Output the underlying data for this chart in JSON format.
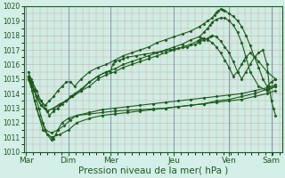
{
  "background_color": "#d4eee8",
  "plot_bg_color": "#cceee4",
  "grid_color": "#e8a0a0",
  "line_color": "#1a5c1a",
  "marker_color": "#1a5c1a",
  "xlabel": "Pression niveau de la mer( hPa )",
  "xlabel_fontsize": 7.5,
  "ylim": [
    1010,
    1020
  ],
  "yticks": [
    1010,
    1011,
    1012,
    1013,
    1014,
    1015,
    1016,
    1017,
    1018,
    1019,
    1020
  ],
  "days": [
    "Mar",
    "Dim",
    "Mer",
    "Jeu",
    "Ven",
    "Sam"
  ],
  "day_positions": [
    0.0,
    1.0,
    2.0,
    3.5,
    4.8,
    5.8
  ],
  "xlim": [
    -0.05,
    6.05
  ],
  "figsize": [
    3.2,
    2.0
  ],
  "dpi": 100,
  "lines": [
    {
      "x": [
        0.05,
        0.12,
        0.18,
        0.25,
        0.35,
        0.45,
        0.55,
        0.65,
        0.75,
        0.85,
        0.95,
        1.05,
        1.15,
        1.3,
        1.5,
        1.7,
        1.9,
        2.1,
        2.3,
        2.5,
        2.7,
        2.9,
        3.1,
        3.3,
        3.5,
        3.7,
        3.9,
        4.1,
        4.2,
        4.3,
        4.4,
        4.45,
        4.5,
        4.55,
        4.6,
        4.65,
        4.7,
        4.8,
        4.9,
        5.0,
        5.1,
        5.2,
        5.3,
        5.4,
        5.5,
        5.6,
        5.7,
        5.8,
        5.9
      ],
      "y": [
        1015.2,
        1014.8,
        1014.3,
        1013.8,
        1013.5,
        1013.2,
        1013.5,
        1013.8,
        1014.2,
        1014.5,
        1014.8,
        1014.8,
        1014.5,
        1015.0,
        1015.5,
        1015.8,
        1016.0,
        1016.3,
        1016.6,
        1016.8,
        1017.0,
        1017.2,
        1017.5,
        1017.7,
        1017.9,
        1018.1,
        1018.3,
        1018.6,
        1018.8,
        1019.0,
        1019.2,
        1019.4,
        1019.6,
        1019.7,
        1019.8,
        1019.75,
        1019.7,
        1019.5,
        1019.3,
        1019.0,
        1018.6,
        1018.0,
        1017.3,
        1016.5,
        1015.8,
        1015.0,
        1014.5,
        1014.8,
        1015.0
      ]
    },
    {
      "x": [
        0.05,
        0.15,
        0.25,
        0.35,
        0.5,
        0.65,
        0.8,
        0.95,
        1.1,
        1.3,
        1.5,
        1.7,
        1.9,
        2.1,
        2.3,
        2.5,
        2.7,
        2.9,
        3.1,
        3.3,
        3.5,
        3.7,
        3.9,
        4.1,
        4.2,
        4.3,
        4.35,
        4.4,
        4.5,
        4.6,
        4.7,
        4.8,
        4.9,
        5.0,
        5.1,
        5.2,
        5.3,
        5.5,
        5.7,
        5.9
      ],
      "y": [
        1015.0,
        1014.5,
        1013.8,
        1013.2,
        1012.8,
        1013.0,
        1013.2,
        1013.5,
        1013.8,
        1014.2,
        1014.8,
        1015.2,
        1015.5,
        1015.7,
        1016.0,
        1016.2,
        1016.4,
        1016.6,
        1016.8,
        1017.0,
        1017.2,
        1017.4,
        1017.7,
        1017.9,
        1018.2,
        1018.5,
        1018.7,
        1018.9,
        1019.1,
        1019.2,
        1019.2,
        1019.0,
        1018.7,
        1018.2,
        1017.5,
        1016.5,
        1015.5,
        1014.5,
        1014.2,
        1014.5
      ]
    },
    {
      "x": [
        0.05,
        0.15,
        0.25,
        0.4,
        0.6,
        0.8,
        1.0,
        1.2,
        1.5,
        1.8,
        2.1,
        2.4,
        2.7,
        3.0,
        3.3,
        3.6,
        3.9,
        4.2,
        4.5,
        4.8,
        5.1,
        5.4,
        5.7,
        5.9
      ],
      "y": [
        1015.0,
        1014.2,
        1013.0,
        1011.5,
        1011.0,
        1011.2,
        1011.5,
        1012.0,
        1012.3,
        1012.5,
        1012.6,
        1012.7,
        1012.8,
        1012.9,
        1013.0,
        1013.1,
        1013.2,
        1013.3,
        1013.4,
        1013.5,
        1013.6,
        1013.8,
        1014.0,
        1014.2
      ]
    },
    {
      "x": [
        0.05,
        0.12,
        0.2,
        0.3,
        0.45,
        0.6,
        0.75,
        0.9,
        1.05,
        1.2,
        1.5,
        1.8,
        2.1,
        2.4,
        2.7,
        3.0,
        3.3,
        3.6,
        3.9,
        4.2,
        4.5,
        4.8,
        5.1,
        5.4,
        5.7,
        5.9
      ],
      "y": [
        1015.2,
        1014.5,
        1013.5,
        1012.5,
        1011.5,
        1011.3,
        1011.5,
        1011.8,
        1012.2,
        1012.5,
        1012.7,
        1012.9,
        1013.0,
        1013.1,
        1013.2,
        1013.3,
        1013.4,
        1013.5,
        1013.6,
        1013.7,
        1013.8,
        1013.9,
        1014.0,
        1014.2,
        1014.4,
        1014.6
      ]
    },
    {
      "x": [
        0.05,
        0.12,
        0.2,
        0.3,
        0.4,
        0.5,
        0.6,
        0.65,
        0.7,
        0.75,
        0.85,
        1.0,
        1.2,
        1.5,
        1.8,
        2.1,
        2.4,
        2.7,
        3.0,
        3.3,
        3.6,
        3.9,
        4.2,
        4.5,
        4.8,
        5.1,
        5.4,
        5.7,
        5.9
      ],
      "y": [
        1015.5,
        1015.0,
        1014.2,
        1013.0,
        1012.0,
        1011.2,
        1010.8,
        1010.9,
        1011.2,
        1011.5,
        1012.0,
        1012.3,
        1012.5,
        1012.6,
        1012.7,
        1012.8,
        1012.85,
        1012.9,
        1012.95,
        1013.0,
        1013.1,
        1013.2,
        1013.3,
        1013.5,
        1013.6,
        1013.8,
        1014.0,
        1014.3,
        1014.5
      ]
    },
    {
      "x": [
        0.05,
        0.15,
        0.25,
        0.35,
        0.45,
        0.55,
        0.65,
        0.75,
        0.85,
        0.95,
        1.05,
        1.15,
        1.3,
        1.5,
        1.7,
        1.9,
        2.0,
        2.05,
        2.1,
        2.2,
        2.3,
        2.4,
        2.6,
        2.8,
        3.0,
        3.2,
        3.4,
        3.6,
        3.8,
        4.0,
        4.1,
        4.2,
        4.3,
        4.35,
        4.4,
        4.5,
        4.6,
        4.7,
        4.8,
        4.9,
        5.0,
        5.1,
        5.2,
        5.3,
        5.4,
        5.5,
        5.6,
        5.7,
        5.75,
        5.8,
        5.85,
        5.9
      ],
      "y": [
        1015.2,
        1014.8,
        1014.2,
        1013.5,
        1013.0,
        1012.5,
        1012.8,
        1013.0,
        1013.3,
        1013.5,
        1013.8,
        1014.0,
        1014.3,
        1014.8,
        1015.2,
        1015.5,
        1015.5,
        1016.0,
        1016.2,
        1016.3,
        1016.4,
        1016.5,
        1016.6,
        1016.7,
        1016.8,
        1016.9,
        1017.0,
        1017.1,
        1017.2,
        1017.4,
        1017.5,
        1017.7,
        1017.8,
        1017.9,
        1018.0,
        1017.9,
        1017.6,
        1017.2,
        1016.8,
        1016.2,
        1015.5,
        1015.0,
        1015.5,
        1016.0,
        1016.5,
        1016.8,
        1017.0,
        1016.0,
        1014.5,
        1013.5,
        1013.0,
        1012.5
      ]
    },
    {
      "x": [
        0.05,
        0.15,
        0.25,
        0.35,
        0.5,
        0.65,
        0.8,
        0.95,
        1.1,
        1.3,
        1.5,
        1.7,
        1.9,
        2.1,
        2.3,
        2.5,
        2.7,
        2.9,
        3.1,
        3.3,
        3.5,
        3.7,
        3.9,
        4.05,
        4.1,
        4.15,
        4.2,
        4.3,
        4.4,
        4.5,
        4.6,
        4.7,
        4.8,
        4.9,
        5.0,
        5.1,
        5.15,
        5.2,
        5.3,
        5.5,
        5.7,
        5.9
      ],
      "y": [
        1015.2,
        1014.5,
        1013.8,
        1013.2,
        1012.8,
        1013.0,
        1013.3,
        1013.5,
        1013.8,
        1014.2,
        1014.5,
        1015.0,
        1015.3,
        1015.5,
        1015.8,
        1016.0,
        1016.2,
        1016.4,
        1016.6,
        1016.8,
        1017.0,
        1017.2,
        1017.4,
        1017.6,
        1017.7,
        1017.8,
        1017.8,
        1017.7,
        1017.5,
        1017.2,
        1016.8,
        1016.3,
        1015.8,
        1015.2,
        1015.5,
        1016.0,
        1016.3,
        1016.5,
        1016.8,
        1016.2,
        1015.5,
        1015.0
      ]
    }
  ],
  "vline_color": "#8888aa",
  "vline_positions": [
    0.0,
    1.0,
    2.0,
    3.5,
    4.8,
    5.8
  ],
  "marker": "D",
  "marker_size": 1.5,
  "linewidth": 0.8
}
